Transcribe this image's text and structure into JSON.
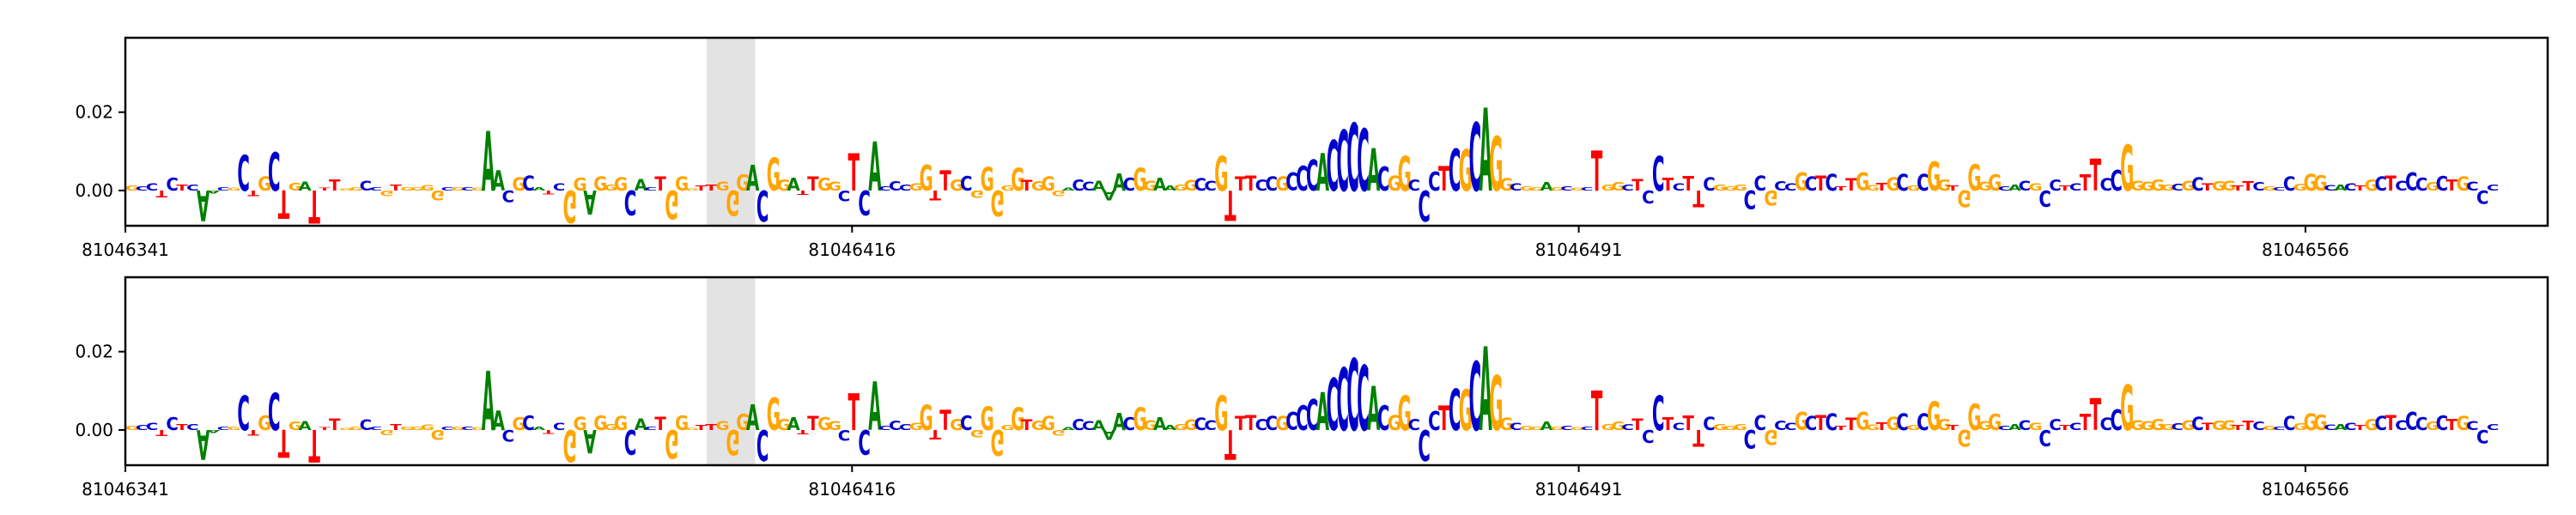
{
  "chart_data": [
    {
      "type": "sequence_logo",
      "title": "",
      "xlabel": "",
      "ylabel": "",
      "ylim": [
        -0.009,
        0.039
      ],
      "xlim": [
        81046341,
        81046591
      ],
      "yticks": [
        "0.00",
        "0.02"
      ],
      "ytick_values": [
        0.0,
        0.02
      ],
      "xticks": [
        "81046341",
        "81046416",
        "81046491",
        "81046566"
      ],
      "xtick_values": [
        81046341,
        81046416,
        81046491,
        81046566
      ],
      "highlight": {
        "start": 81046401,
        "end": 81046406,
        "color": "#e3e3e3"
      },
      "colors": {
        "A": "#008000",
        "C": "#0000cc",
        "G": "#ffa500",
        "T": "#ff0000"
      },
      "sequence": "GCCTCTCAACGCTGCTGATTTGGCCGTGGGGCGCGAACGCATCGGAGGGCACTGGGTTGGGACGGATTGGCTCACCCGGTTGCGGGGGTGGGACCAAACGGAAGGCCGTTTCCGCCCACCCCACGGCCCTCGCAGGCGGAGCGCTGGCTCCTCTTCGGGCCGCCGCTCTTGGTGCGCGGTGGGGCACGCCTCTTCCGGGGGCGCTGGTTCGCCGGGCACTGCTCCCGCTGCCCGGAAA",
      "series": [
        {
          "name": "",
          "values": [
            0.0012,
            0.0011,
            0.0019,
            -0.0017,
            0.0033,
            0.0015,
            0.0015,
            -0.0078,
            -0.0007,
            0.0009,
            0.0007,
            0.0091,
            -0.0014,
            0.0036,
            0.0098,
            -0.0072,
            0.002,
            0.0023,
            -0.0084,
            0.0007,
            0.0029,
            0.0006,
            0.0009,
            0.0026,
            0.0008,
            -0.0014,
            0.0015,
            0.0008,
            0.0009,
            0.0014,
            -0.0026,
            0.0008,
            0.0008,
            0.0009,
            0.0007,
            0.0153,
            0.0051,
            -0.003,
            0.0034,
            0.0038,
            0.0008,
            -0.001,
            0.0019,
            -0.0082,
            0.0033,
            -0.0061,
            0.0036,
            0.0016,
            0.0034,
            -0.0063,
            0.003,
            0.0008,
            0.0035,
            -0.0073,
            0.0036,
            0.0005,
            0.0012,
            0.0016,
            0.0022,
            -0.0064,
            0.0041,
            0.0065,
            -0.0079,
            0.0084,
            0.0029,
            0.0033,
            -0.0011,
            0.0035,
            0.0033,
            0.0023,
            -0.0027,
            0.0095,
            -0.0063,
            0.0125,
            0.0011,
            0.0024,
            0.0016,
            0.0019,
            0.0065,
            -0.0025,
            0.0051,
            0.0028,
            0.0037,
            -0.0019,
            0.006,
            -0.0066,
            0.0012,
            0.0058,
            0.0027,
            0.0024,
            0.0036,
            -0.0014,
            0.0007,
            0.0028,
            0.0022,
            0.0026,
            -0.0025,
            0.0044,
            0.0032,
            0.0058,
            0.0026,
            0.0033,
            0.0012,
            0.0016,
            0.0027,
            0.0031,
            0.0025,
            0.0089,
            -0.0077,
            0.0035,
            0.0038,
            0.0028,
            0.0036,
            0.0036,
            0.0045,
            0.0063,
            0.0079,
            0.0095,
            0.0128,
            0.0155,
            0.0173,
            0.0158,
            0.0108,
            0.0061,
            0.0038,
            0.0089,
            0.0028,
            -0.0078,
            0.0049,
            0.0063,
            0.0107,
            0.0105,
            0.0174,
            0.0212,
            0.0139,
            0.0031,
            0.0019,
            0.0011,
            0.0008,
            0.0021,
            0.0009,
            0.0011,
            0.0007,
            0.0009,
            0.0102,
            0.0015,
            0.0021,
            0.0015,
            0.003,
            -0.0033,
            0.0089,
            0.0033,
            0.0018,
            0.0037,
            -0.0042,
            0.0034,
            0.0016,
            0.0011,
            0.0016,
            -0.0047,
            0.0038,
            -0.0039,
            0.0024,
            0.0019,
            0.0045,
            0.0035,
            0.0039,
            0.0043,
            0.0011,
            0.0031,
            0.0045,
            0.0014,
            0.002,
            0.0034,
            0.0043,
            0.0012,
            0.0043,
            0.0074,
            0.0029,
            0.0012,
            -0.0042,
            0.0067,
            0.0022,
            0.0041,
            0.0011,
            0.0015,
            0.0026,
            0.0018,
            -0.0041,
            0.0028,
            0.0013,
            0.0018,
            0.0041,
            0.0081,
            0.0031,
            0.0053,
            0.0117,
            0.0025,
            0.0023,
            0.0029,
            0.0016,
            0.0017,
            0.0025,
            0.0034,
            0.0018,
            0.0024,
            0.0025,
            0.0012,
            0.0024,
            0.0021,
            0.0011,
            0.0009,
            0.0036,
            0.0017,
            0.0042,
            0.004,
            0.0014,
            0.0016,
            0.0019,
            0.0012,
            0.0029,
            0.0036,
            0.0039,
            0.0025,
            0.0045,
            0.0032,
            0.0021,
            0.0037,
            0.0028,
            0.0036,
            0.0022,
            -0.0034,
            0.0016
          ]
        }
      ]
    },
    {
      "type": "sequence_logo",
      "title": "",
      "xlabel": "",
      "ylabel": "",
      "ylim": [
        -0.009,
        0.039
      ],
      "xlim": [
        81046341,
        81046591
      ],
      "yticks": [
        "0.00",
        "0.02"
      ],
      "ytick_values": [
        0.0,
        0.02
      ],
      "xticks": [
        "81046341",
        "81046416",
        "81046491",
        "81046566"
      ],
      "xtick_values": [
        81046341,
        81046416,
        81046491,
        81046566
      ],
      "highlight": {
        "start": 81046401,
        "end": 81046406,
        "color": "#e3e3e3"
      },
      "colors": {
        "A": "#008000",
        "C": "#0000cc",
        "G": "#ffa500",
        "T": "#ff0000"
      },
      "sequence": "GCCTCTCAACGCTGCTGATTTGGCCGTGGGGCGCGAACGCATCGGAGGGCACTGGGTTGGGACGGATTGGCTCACCCGGTTGCGGGGGTGGGACCAAACGGAAGGCCGTTTCCGCCCACCCCACGGCCCTCGCAGGCGGAGCGCTGGCTCCTCTTCGGGCCGCCGCTCTTGGTGCGCGGTGGGGCACGCCTCTTCCGGGGGCGCTGGTTCGCCGGGCACTGCTCCCGCTGCCCGGAAA",
      "series": [
        {
          "name": "",
          "values": [
            0.0011,
            0.0012,
            0.0018,
            -0.0016,
            0.0032,
            0.0015,
            0.0016,
            -0.0076,
            -0.0007,
            0.0009,
            0.0008,
            0.0089,
            -0.0014,
            0.0037,
            0.0096,
            -0.0071,
            0.0021,
            0.0023,
            -0.0082,
            0.0007,
            0.003,
            0.0006,
            0.0009,
            0.0027,
            0.0008,
            -0.0013,
            0.0015,
            0.0008,
            0.0009,
            0.0014,
            -0.0025,
            0.0008,
            0.0008,
            0.0009,
            0.0007,
            0.0151,
            0.005,
            -0.003,
            0.0033,
            0.0037,
            0.0008,
            -0.001,
            0.0019,
            -0.0081,
            0.0034,
            -0.006,
            0.0037,
            0.0016,
            0.0035,
            -0.0062,
            0.003,
            0.0008,
            0.0034,
            -0.0072,
            0.0037,
            0.0005,
            0.0012,
            0.0016,
            0.0022,
            -0.0064,
            0.0041,
            0.0065,
            -0.0078,
            0.0083,
            0.0029,
            0.0033,
            -0.0011,
            0.0035,
            0.0033,
            0.0023,
            -0.0027,
            0.0094,
            -0.0062,
            0.0124,
            0.0011,
            0.0024,
            0.0016,
            0.0019,
            0.0064,
            -0.0024,
            0.0051,
            0.0028,
            0.0037,
            -0.0019,
            0.006,
            -0.0065,
            0.0012,
            0.0058,
            0.0027,
            0.0024,
            0.0036,
            -0.0014,
            0.0007,
            0.0028,
            0.0022,
            0.0026,
            -0.0025,
            0.0044,
            0.0032,
            0.0058,
            0.0026,
            0.0033,
            0.0012,
            0.0016,
            0.0027,
            0.0031,
            0.0025,
            0.0088,
            -0.0076,
            0.0035,
            0.0038,
            0.0028,
            0.0036,
            0.0036,
            0.0045,
            0.0063,
            0.0079,
            0.0097,
            0.0133,
            0.016,
            0.0182,
            0.0165,
            0.0112,
            0.0063,
            0.0038,
            0.0089,
            0.0028,
            -0.0079,
            0.0049,
            0.0063,
            0.0106,
            0.0104,
            0.0176,
            0.0214,
            0.014,
            0.0031,
            0.0019,
            0.0011,
            0.0008,
            0.0021,
            0.0009,
            0.0011,
            0.0007,
            0.0009,
            0.0101,
            0.0015,
            0.0021,
            0.0015,
            0.003,
            -0.0033,
            0.0089,
            0.0033,
            0.0018,
            0.0037,
            -0.0042,
            0.0034,
            0.0016,
            0.0011,
            0.0016,
            -0.0047,
            0.0038,
            -0.0039,
            0.0024,
            0.0019,
            0.0045,
            0.0035,
            0.0039,
            0.0043,
            0.0011,
            0.0031,
            0.0045,
            0.0014,
            0.002,
            0.0034,
            0.0043,
            0.0012,
            0.0043,
            0.0073,
            0.0029,
            0.0012,
            -0.0042,
            0.0067,
            0.0022,
            0.0041,
            0.0011,
            0.0015,
            0.0026,
            0.0018,
            -0.0041,
            0.0028,
            0.0013,
            0.0018,
            0.0041,
            0.0081,
            0.0031,
            0.0053,
            0.0116,
            0.0025,
            0.0023,
            0.0029,
            0.0016,
            0.0017,
            0.0025,
            0.0034,
            0.0018,
            0.0024,
            0.0025,
            0.0012,
            0.0024,
            0.0021,
            0.0011,
            0.0009,
            0.0036,
            0.0017,
            0.0042,
            0.004,
            0.0014,
            0.0016,
            0.0019,
            0.0012,
            0.0029,
            0.0036,
            0.0039,
            0.0025,
            0.0045,
            0.0032,
            0.0021,
            0.0037,
            0.0028,
            0.0036,
            0.0022,
            -0.0034,
            0.0016
          ]
        }
      ]
    }
  ]
}
